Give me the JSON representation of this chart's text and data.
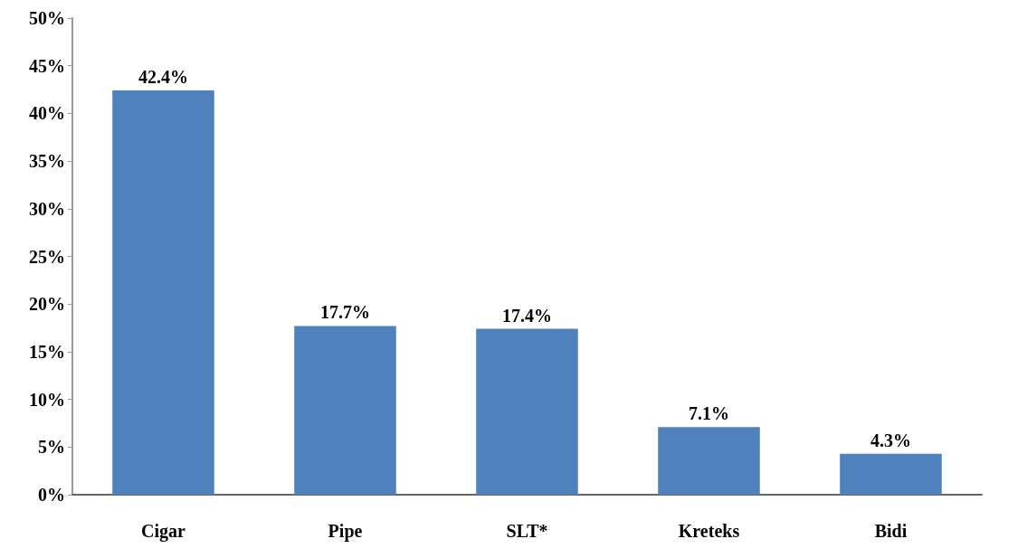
{
  "chart_data": {
    "type": "bar",
    "categories": [
      "Cigar",
      "Pipe",
      "SLT*",
      "Kreteks",
      "Bidi"
    ],
    "values": [
      42.4,
      17.7,
      17.4,
      7.1,
      4.3
    ],
    "value_labels": [
      "42.4%",
      "17.7%",
      "17.4%",
      "7.1%",
      "4.3%"
    ],
    "color": "#4f81bd",
    "ylim": [
      0,
      50
    ],
    "yticks": [
      {
        "value": 0,
        "label": "0%"
      },
      {
        "value": 5,
        "label": "5%"
      },
      {
        "value": 10,
        "label": "10%"
      },
      {
        "value": 15,
        "label": "15%"
      },
      {
        "value": 20,
        "label": "20%"
      },
      {
        "value": 25,
        "label": "25%"
      },
      {
        "value": 30,
        "label": "30%"
      },
      {
        "value": 35,
        "label": "35%"
      },
      {
        "value": 40,
        "label": "40%"
      },
      {
        "value": 45,
        "label": "45%"
      },
      {
        "value": 50,
        "label": "50%"
      }
    ],
    "grid": false
  }
}
